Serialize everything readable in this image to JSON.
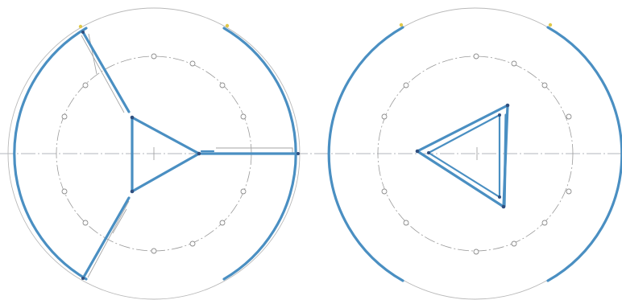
{
  "view": {
    "panels": [
      {
        "name": "left-drawing",
        "mechanism": "three-arm-linkage"
      },
      {
        "name": "right-drawing",
        "mechanism": "nested-triangle"
      }
    ],
    "colors": {
      "link": "#4a8fc2",
      "construction": "#b9b9b9",
      "node": "#2f4f7f",
      "marker": "#e0c84a",
      "background": "#ffffff"
    },
    "hole_count": 12
  }
}
